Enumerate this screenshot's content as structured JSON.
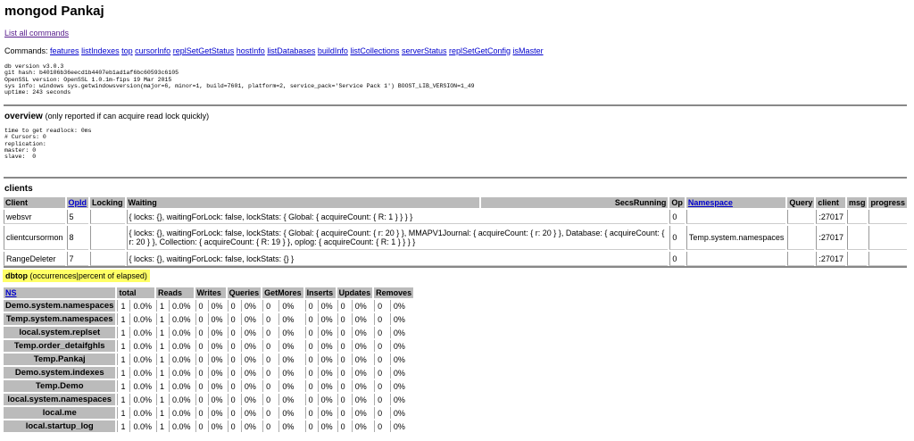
{
  "title": "mongod Pankaj",
  "list_all_commands": "List all commands",
  "commands_label": "Commands:",
  "commands": [
    "features",
    "listIndexes",
    "top",
    "cursorInfo",
    "replSetGetStatus",
    "hostInfo",
    "listDatabases",
    "buildInfo",
    "listCollections",
    "serverStatus",
    "replSetGetConfig",
    "isMaster"
  ],
  "info": "db version v3.0.3\ngit hash: b40106b36eecd1b4407eb1ad1af6bc60593c6105\nOpenSSL version: OpenSSL 1.0.1m-fips 19 Mar 2015\nsys info: windows sys.getwindowsversion(major=6, minor=1, build=7601, platform=2, service_pack='Service Pack 1') BOOST_LIB_VERSION=1_49\nuptime: 243 seconds",
  "overview": {
    "title": "overview",
    "note": "(only reported if can acquire read lock quickly)",
    "text": "time to get readlock: 0ms\n# Cursors: 0\nreplication:\nmaster: 0\nslave:  0"
  },
  "clients": {
    "title": "clients",
    "headers": [
      "Client",
      "OpId",
      "Locking",
      "Waiting",
      "SecsRunning",
      "Op",
      "Namespace",
      "Query",
      "client",
      "msg",
      "progress"
    ],
    "rows": [
      [
        "websvr",
        "5",
        "",
        "{ locks: {}, waitingForLock: false, lockStats: { Global: { acquireCount: { R: 1 } } } }",
        "",
        "0",
        "",
        "",
        ":27017",
        "",
        ""
      ],
      [
        "clientcursormon",
        "8",
        "",
        "{ locks: {}, waitingForLock: false, lockStats: { Global: { acquireCount: { r: 20 } }, MMAPV1Journal: { acquireCount: { r: 20 } }, Database: { acquireCount: { r: 20 } }, Collection: { acquireCount: { R: 19 } }, oplog: { acquireCount: { R: 1 } } } }",
        "",
        "0",
        "Temp.system.namespaces",
        "",
        ":27017",
        "",
        ""
      ],
      [
        "RangeDeleter",
        "7",
        "",
        "{ locks: {}, waitingForLock: false, lockStats: {} }",
        "",
        "0",
        "",
        "",
        ":27017",
        "",
        ""
      ]
    ]
  },
  "dbtop": {
    "title": "dbtop",
    "note": "(occurrences|percent of elapsed)",
    "headers": [
      "NS",
      "total",
      "Reads",
      "Writes",
      "Queries",
      "GetMores",
      "Inserts",
      "Updates",
      "Removes"
    ],
    "rows": [
      [
        "Demo.system.namespaces",
        "1",
        "0.0%",
        "1",
        "0.0%",
        "0",
        "0%",
        "0",
        "0%",
        "0",
        "0%",
        "0",
        "0%",
        "0",
        "0%",
        "0",
        "0%"
      ],
      [
        "Temp.system.namespaces",
        "1",
        "0.0%",
        "1",
        "0.0%",
        "0",
        "0%",
        "0",
        "0%",
        "0",
        "0%",
        "0",
        "0%",
        "0",
        "0%",
        "0",
        "0%"
      ],
      [
        "local.system.replset",
        "1",
        "0.0%",
        "1",
        "0.0%",
        "0",
        "0%",
        "0",
        "0%",
        "0",
        "0%",
        "0",
        "0%",
        "0",
        "0%",
        "0",
        "0%"
      ],
      [
        "Temp.order_detaifghls",
        "1",
        "0.0%",
        "1",
        "0.0%",
        "0",
        "0%",
        "0",
        "0%",
        "0",
        "0%",
        "0",
        "0%",
        "0",
        "0%",
        "0",
        "0%"
      ],
      [
        "Temp.Pankaj",
        "1",
        "0.0%",
        "1",
        "0.0%",
        "0",
        "0%",
        "0",
        "0%",
        "0",
        "0%",
        "0",
        "0%",
        "0",
        "0%",
        "0",
        "0%"
      ],
      [
        "Demo.system.indexes",
        "1",
        "0.0%",
        "1",
        "0.0%",
        "0",
        "0%",
        "0",
        "0%",
        "0",
        "0%",
        "0",
        "0%",
        "0",
        "0%",
        "0",
        "0%"
      ],
      [
        "Temp.Demo",
        "1",
        "0.0%",
        "1",
        "0.0%",
        "0",
        "0%",
        "0",
        "0%",
        "0",
        "0%",
        "0",
        "0%",
        "0",
        "0%",
        "0",
        "0%"
      ],
      [
        "local.system.namespaces",
        "1",
        "0.0%",
        "1",
        "0.0%",
        "0",
        "0%",
        "0",
        "0%",
        "0",
        "0%",
        "0",
        "0%",
        "0",
        "0%",
        "0",
        "0%"
      ],
      [
        "local.me",
        "1",
        "0.0%",
        "1",
        "0.0%",
        "0",
        "0%",
        "0",
        "0%",
        "0",
        "0%",
        "0",
        "0%",
        "0",
        "0%",
        "0",
        "0%"
      ],
      [
        "local.startup_log",
        "1",
        "0.0%",
        "1",
        "0.0%",
        "0",
        "0%",
        "0",
        "0%",
        "0",
        "0%",
        "0",
        "0%",
        "0",
        "0%",
        "0",
        "0%"
      ]
    ]
  },
  "colors": {
    "highlight": "#ffff66",
    "header_bg": "#bbbbbb",
    "link": "#0000cc"
  }
}
